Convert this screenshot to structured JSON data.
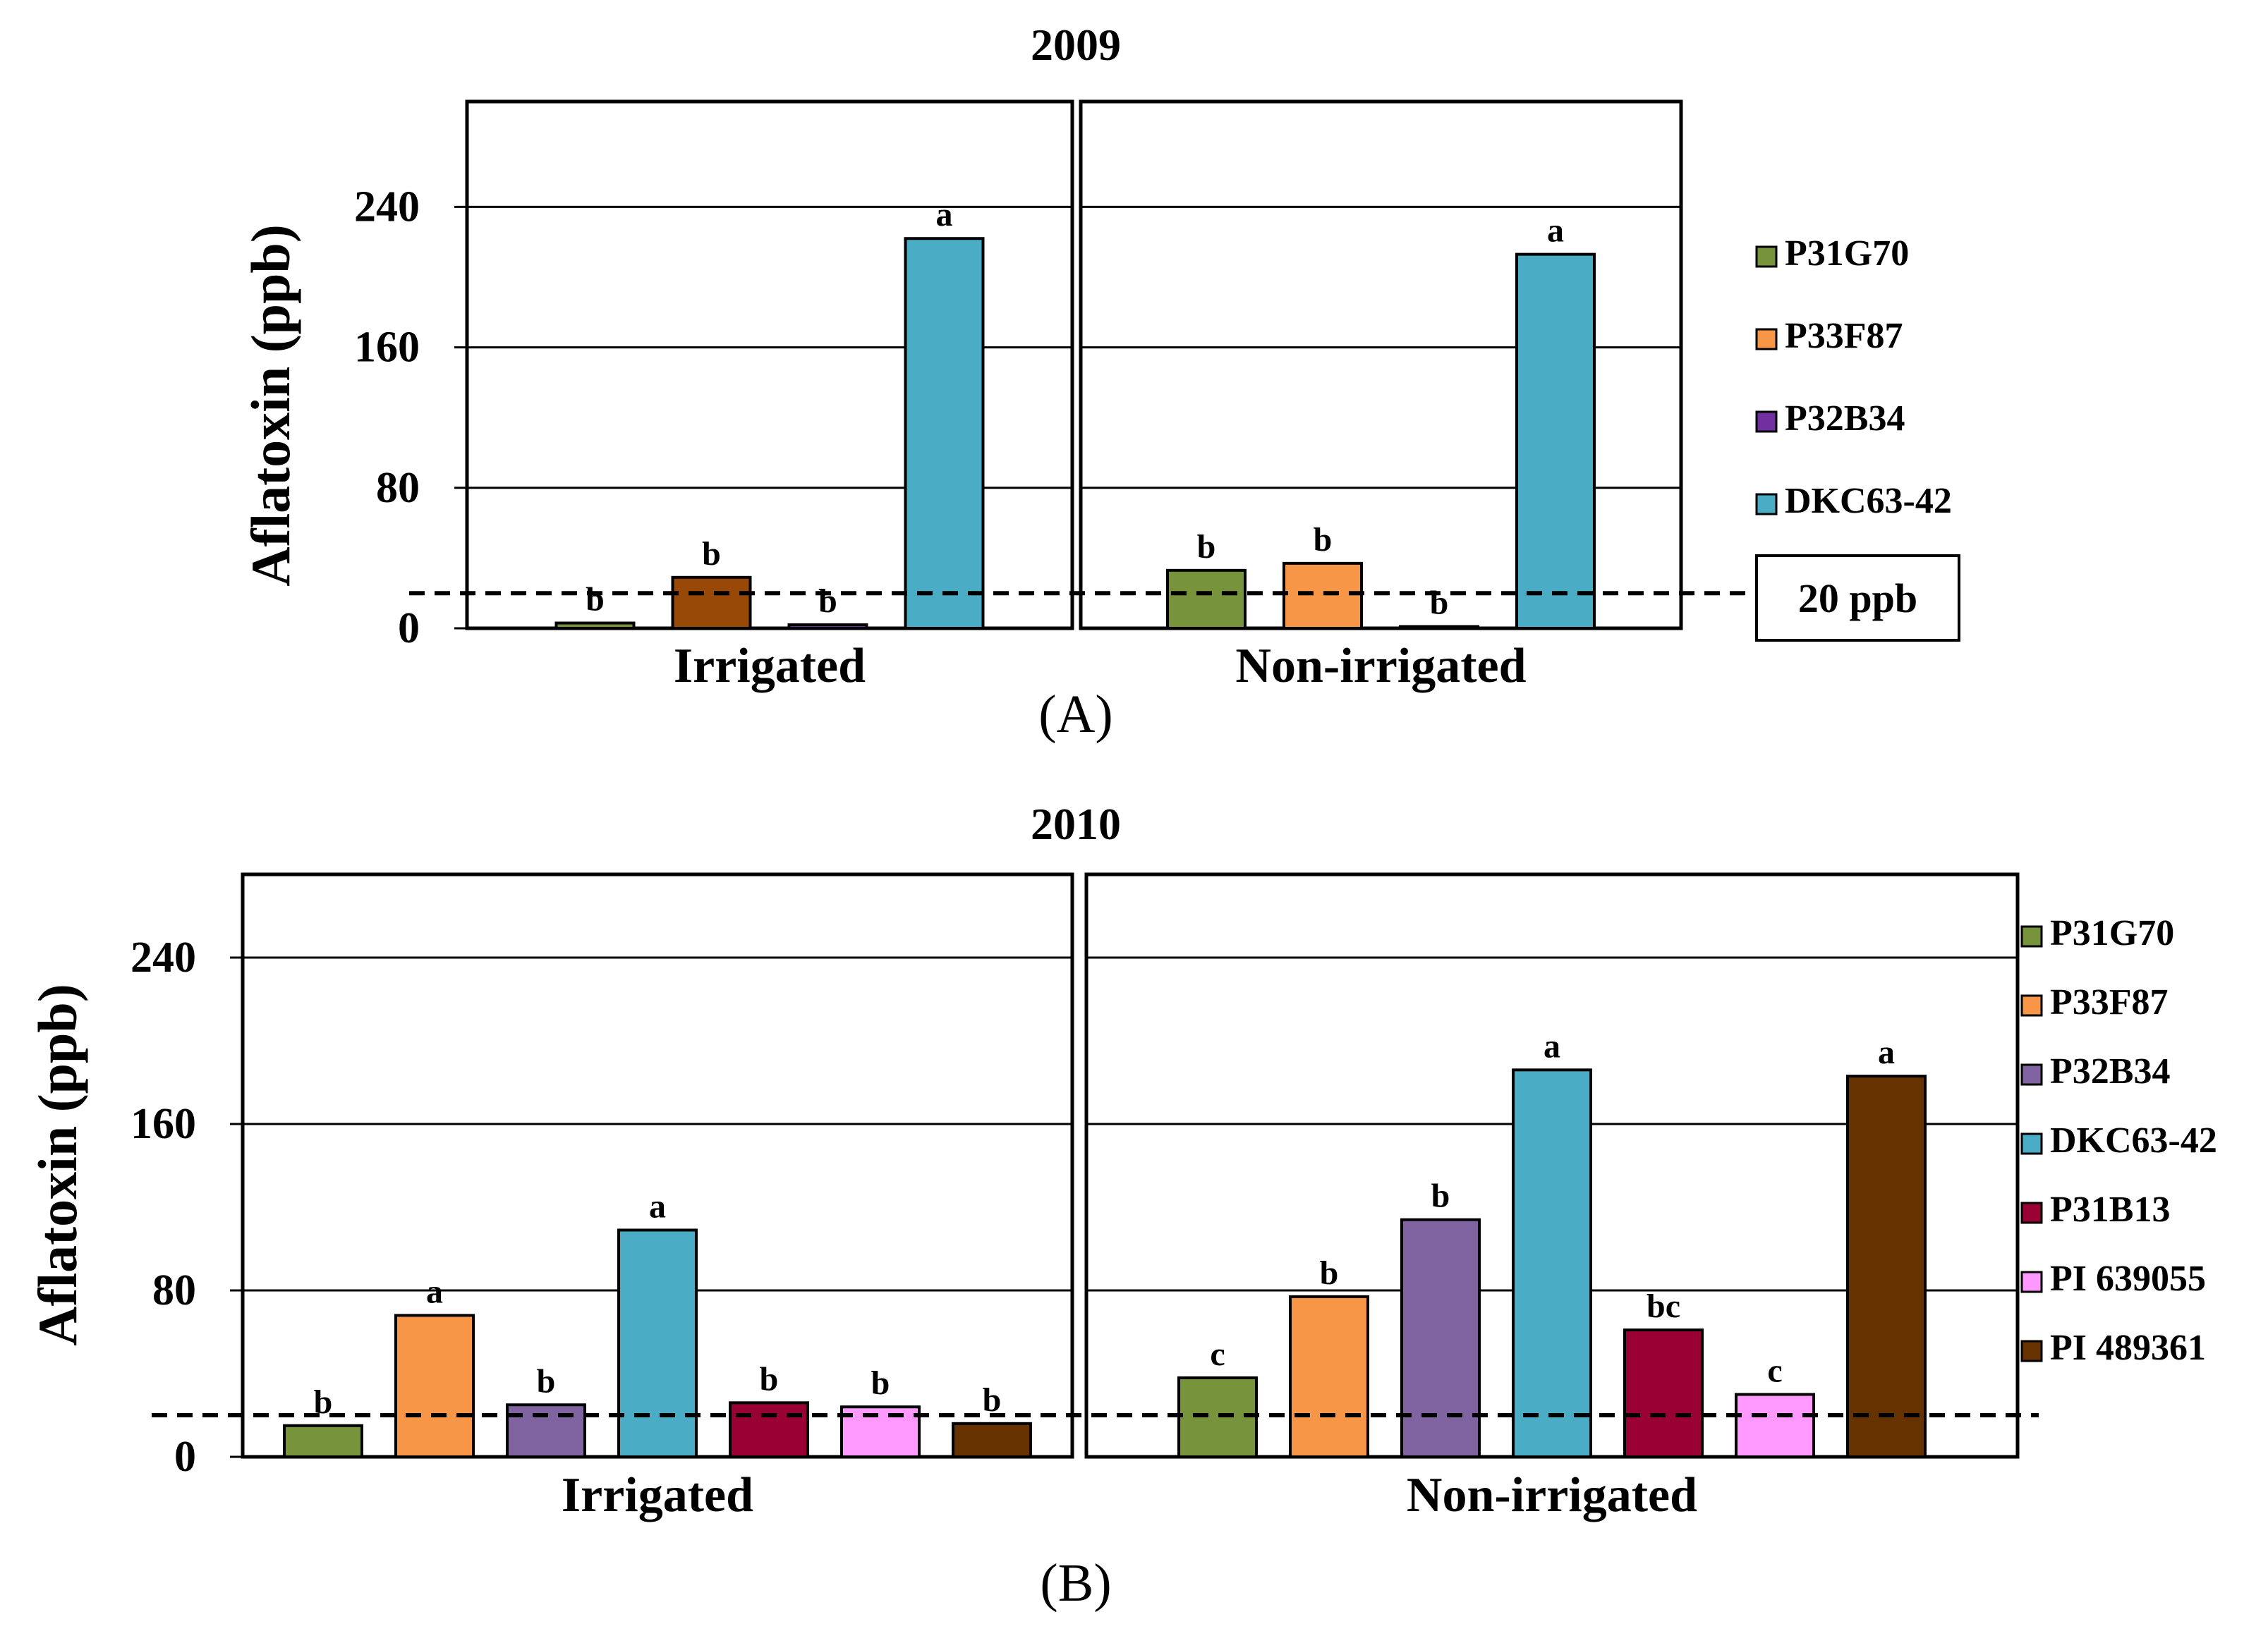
{
  "chart_data": [
    {
      "type": "bar",
      "title": "2009",
      "panel_label": "(A)",
      "ylabel": "Aflatoxin (ppb)",
      "ylim": [
        0,
        300
      ],
      "yticks": [
        0,
        80,
        160,
        240
      ],
      "grid": true,
      "legend_position": "right",
      "categories": [
        "Irrigated",
        "Non-irrigated"
      ],
      "series": [
        {
          "name": "P31G70",
          "color": "#77933C",
          "values": [
            3,
            33
          ],
          "letters": [
            "b",
            "b"
          ]
        },
        {
          "name": "P33F87",
          "color": "#F79646",
          "values": [
            29,
            37
          ],
          "letters": [
            "b",
            "b"
          ]
        },
        {
          "name": "P32B34",
          "color": "#7030A0",
          "values": [
            2,
            1
          ],
          "letters": [
            "b",
            "b"
          ]
        },
        {
          "name": "DKC63-42",
          "color": "#4BACC6",
          "values": [
            222,
            213
          ],
          "letters": [
            "a",
            "a"
          ]
        }
      ],
      "bar_color_overrides": [
        {
          "series": 1,
          "category": 0,
          "color": "#984807"
        }
      ],
      "threshold": {
        "value": 20,
        "label": "20 ppb"
      }
    },
    {
      "type": "bar",
      "title": "2010",
      "panel_label": "(B)",
      "ylabel": "Aflatoxin (ppb)",
      "ylim": [
        0,
        280
      ],
      "yticks": [
        0,
        80,
        160,
        240
      ],
      "grid": true,
      "legend_position": "right",
      "categories": [
        "Irrigated",
        "Non-irrigated"
      ],
      "series": [
        {
          "name": "P31G70",
          "color": "#77933C",
          "values": [
            15,
            38
          ],
          "letters": [
            "b",
            "c"
          ]
        },
        {
          "name": "P33F87",
          "color": "#F79646",
          "values": [
            68,
            77
          ],
          "letters": [
            "a",
            "b"
          ]
        },
        {
          "name": "P32B34",
          "color": "#8064A2",
          "values": [
            25,
            114
          ],
          "letters": [
            "b",
            "b"
          ]
        },
        {
          "name": "DKC63-42",
          "color": "#4BACC6",
          "values": [
            109,
            186
          ],
          "letters": [
            "a",
            "a"
          ]
        },
        {
          "name": "P31B13",
          "color": "#990033",
          "values": [
            26,
            61
          ],
          "letters": [
            "b",
            "bc"
          ]
        },
        {
          "name": "PI 639055",
          "color": "#FF99FF",
          "values": [
            24,
            30
          ],
          "letters": [
            "b",
            "c"
          ]
        },
        {
          "name": "PI 489361",
          "color": "#663300",
          "values": [
            16,
            183
          ],
          "letters": [
            "b",
            "a"
          ]
        }
      ],
      "threshold": {
        "value": 20,
        "label": ""
      }
    }
  ]
}
